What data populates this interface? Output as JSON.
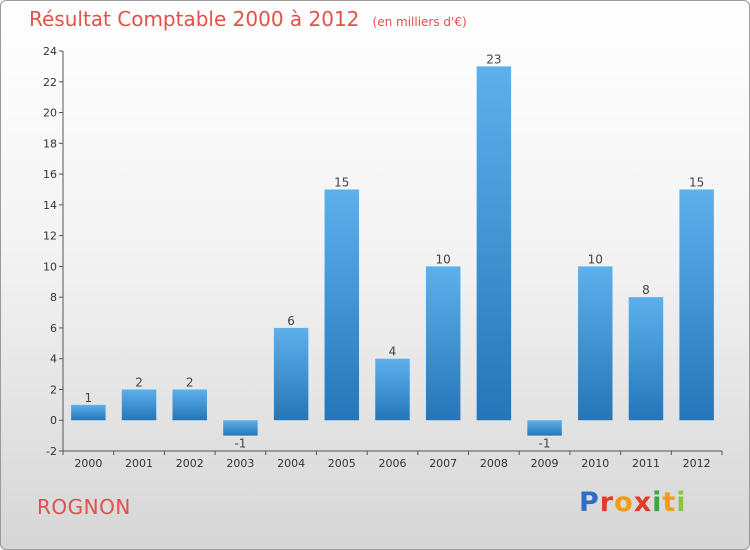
{
  "header": {
    "title": "Résultat Comptable 2000 à 2012",
    "subtitle": "(en milliers d'€)"
  },
  "commune": "ROGNON",
  "logo_text": "Proxiti",
  "colors": {
    "title": "#e2504a",
    "bar_light": "#5db0ec",
    "bar_dark": "#2576b8"
  },
  "chart_data": {
    "type": "bar",
    "categories": [
      "2000",
      "2001",
      "2002",
      "2003",
      "2004",
      "2005",
      "2006",
      "2007",
      "2008",
      "2009",
      "2010",
      "2011",
      "2012"
    ],
    "values": [
      1,
      2,
      2,
      -1,
      6,
      15,
      4,
      10,
      23,
      -1,
      10,
      8,
      15
    ],
    "data_labels": [
      "1",
      "2",
      "2",
      "-1",
      "6",
      "15",
      "4",
      "10",
      "23",
      "-1",
      "10",
      "8",
      "15"
    ],
    "title": "Résultat Comptable 2000 à 2012",
    "ylim": [
      -2,
      24
    ],
    "yticks": [
      -2,
      0,
      2,
      4,
      6,
      8,
      10,
      12,
      14,
      16,
      18,
      20,
      22,
      24
    ],
    "grid": false,
    "legend": "none"
  }
}
